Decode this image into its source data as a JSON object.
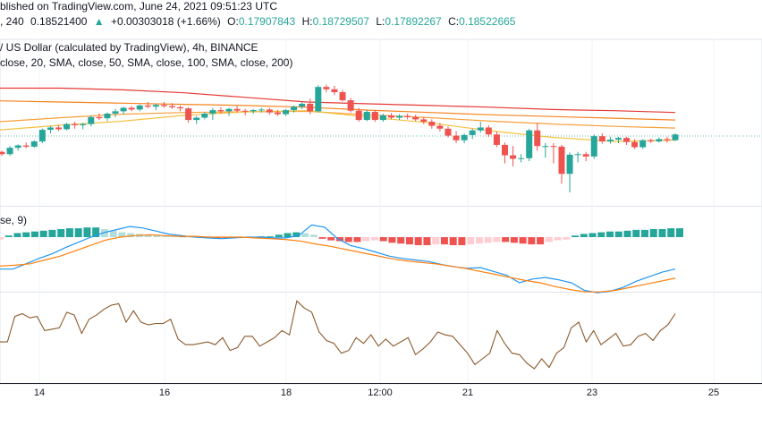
{
  "header": {
    "line1": "blished on TradingView.com, June 24, 2021 09:51:23 UTC",
    "interval": ", 240",
    "price": "0.18521400",
    "change_arrow": "▲",
    "change": "+0.00303018 (+1.66%)",
    "o_label": "O:",
    "o_value": "0.17907843",
    "h_label": "H:",
    "h_value": "0.18729507",
    "l_label": "L:",
    "l_value": "0.17892267",
    "c_label": "C:",
    "c_value": "0.18522665",
    "pair": "/ US Dollar (calculated by TradingView), 4h, BINANCE",
    "sma_line": "close, 20, SMA, close, 50, SMA, close, 100, SMA, close, 200)",
    "macd_label": "se, 9)"
  },
  "colors": {
    "up": "#26a69a",
    "down": "#ef5350",
    "sma20": "#f5c242",
    "sma50": "#f7a03a",
    "sma100": "#f7831f",
    "sma200": "#e53935",
    "macd": "#2196f3",
    "signal": "#ff7f0e",
    "rsi": "#8b5a2b"
  },
  "chart_data": {
    "type": "candlestick",
    "x_ticks": [
      "14",
      "16",
      "18",
      "12:00",
      "21",
      "23",
      "25"
    ],
    "candles": [
      [
        0.179,
        0.1792,
        0.1783,
        0.1786
      ],
      [
        0.1786,
        0.18,
        0.1783,
        0.1797
      ],
      [
        0.1797,
        0.1803,
        0.1792,
        0.1801
      ],
      [
        0.1801,
        0.1806,
        0.1796,
        0.1799
      ],
      [
        0.1799,
        0.181,
        0.1797,
        0.1808
      ],
      [
        0.1808,
        0.183,
        0.1805,
        0.1828
      ],
      [
        0.1828,
        0.1835,
        0.1822,
        0.1832
      ],
      [
        0.1832,
        0.1836,
        0.1826,
        0.1829
      ],
      [
        0.1829,
        0.184,
        0.1827,
        0.1838
      ],
      [
        0.1838,
        0.1842,
        0.183,
        0.1836
      ],
      [
        0.1836,
        0.184,
        0.1829,
        0.1838
      ],
      [
        0.1838,
        0.1852,
        0.1834,
        0.185
      ],
      [
        0.185,
        0.1856,
        0.1845,
        0.1848
      ],
      [
        0.1848,
        0.1858,
        0.1843,
        0.1856
      ],
      [
        0.1856,
        0.1864,
        0.185,
        0.186
      ],
      [
        0.186,
        0.1868,
        0.1855,
        0.1866
      ],
      [
        0.1866,
        0.1869,
        0.186,
        0.1863
      ],
      [
        0.1863,
        0.1872,
        0.186,
        0.187
      ],
      [
        0.187,
        0.1876,
        0.1865,
        0.1868
      ],
      [
        0.1868,
        0.1873,
        0.1862,
        0.1871
      ],
      [
        0.1871,
        0.1876,
        0.1866,
        0.1869
      ],
      [
        0.1869,
        0.1874,
        0.1864,
        0.1867
      ],
      [
        0.1867,
        0.187,
        0.186,
        0.1865
      ],
      [
        0.1865,
        0.1867,
        0.184,
        0.1845
      ],
      [
        0.1845,
        0.1852,
        0.1838,
        0.1849
      ],
      [
        0.1849,
        0.1858,
        0.1846,
        0.1856
      ],
      [
        0.1856,
        0.1866,
        0.1845,
        0.1862
      ],
      [
        0.1862,
        0.1867,
        0.1856,
        0.186
      ],
      [
        0.186,
        0.1866,
        0.1852,
        0.1864
      ],
      [
        0.1864,
        0.1869,
        0.1858,
        0.1861
      ],
      [
        0.1861,
        0.1864,
        0.1853,
        0.186
      ],
      [
        0.186,
        0.1864,
        0.1856,
        0.1862
      ],
      [
        0.1862,
        0.1866,
        0.1858,
        0.1863
      ],
      [
        0.1863,
        0.1866,
        0.1854,
        0.1858
      ],
      [
        0.1858,
        0.1862,
        0.1852,
        0.1855
      ],
      [
        0.1855,
        0.1864,
        0.1852,
        0.1862
      ],
      [
        0.1862,
        0.187,
        0.1858,
        0.1868
      ],
      [
        0.1868,
        0.1876,
        0.1864,
        0.1873
      ],
      [
        0.1873,
        0.1882,
        0.1855,
        0.186
      ],
      [
        0.186,
        0.1905,
        0.1858,
        0.1902
      ],
      [
        0.1902,
        0.1906,
        0.1893,
        0.1898
      ],
      [
        0.1898,
        0.1904,
        0.1888,
        0.1893
      ],
      [
        0.1893,
        0.1897,
        0.1877,
        0.1879
      ],
      [
        0.1879,
        0.1883,
        0.1858,
        0.1861
      ],
      [
        0.1861,
        0.1866,
        0.1842,
        0.1845
      ],
      [
        0.1845,
        0.1862,
        0.1843,
        0.1859
      ],
      [
        0.1859,
        0.1862,
        0.1842,
        0.1845
      ],
      [
        0.1845,
        0.1856,
        0.1842,
        0.1853
      ],
      [
        0.1853,
        0.1857,
        0.1846,
        0.1849
      ],
      [
        0.1849,
        0.1855,
        0.1845,
        0.1852
      ],
      [
        0.1852,
        0.1856,
        0.1846,
        0.185
      ],
      [
        0.185,
        0.1854,
        0.1843,
        0.1846
      ],
      [
        0.1846,
        0.185,
        0.1838,
        0.1842
      ],
      [
        0.1842,
        0.1846,
        0.183,
        0.1835
      ],
      [
        0.1835,
        0.184,
        0.1825,
        0.183
      ],
      [
        0.183,
        0.1834,
        0.1815,
        0.1818
      ],
      [
        0.1818,
        0.1826,
        0.1805,
        0.181
      ],
      [
        0.181,
        0.1822,
        0.1805,
        0.1819
      ],
      [
        0.1819,
        0.183,
        0.1812,
        0.1827
      ],
      [
        0.1827,
        0.1842,
        0.1823,
        0.1832
      ],
      [
        0.1832,
        0.1836,
        0.1816,
        0.182
      ],
      [
        0.182,
        0.1825,
        0.1798,
        0.1802
      ],
      [
        0.1802,
        0.1806,
        0.177,
        0.1784
      ],
      [
        0.1784,
        0.18,
        0.1765,
        0.1778
      ],
      [
        0.1778,
        0.1786,
        0.1772,
        0.1779
      ],
      [
        0.1779,
        0.183,
        0.1774,
        0.1827
      ],
      [
        0.1827,
        0.184,
        0.1792,
        0.18
      ],
      [
        0.18,
        0.1805,
        0.178,
        0.18
      ],
      [
        0.18,
        0.1805,
        0.177,
        0.1799
      ],
      [
        0.1799,
        0.1802,
        0.1735,
        0.1752
      ],
      [
        0.1752,
        0.1789,
        0.172,
        0.1785
      ],
      [
        0.1785,
        0.179,
        0.1772,
        0.1786
      ],
      [
        0.1786,
        0.179,
        0.1774,
        0.1782
      ],
      [
        0.1782,
        0.182,
        0.1778,
        0.1817
      ],
      [
        0.1817,
        0.1822,
        0.1804,
        0.1808
      ],
      [
        0.1808,
        0.1816,
        0.1804,
        0.1811
      ],
      [
        0.1811,
        0.1816,
        0.1805,
        0.1814
      ],
      [
        0.1814,
        0.1816,
        0.1802,
        0.1807
      ],
      [
        0.1807,
        0.1812,
        0.1795,
        0.1798
      ],
      [
        0.1798,
        0.1812,
        0.1795,
        0.181
      ],
      [
        0.181,
        0.1813,
        0.1805,
        0.1808
      ],
      [
        0.1808,
        0.1815,
        0.1806,
        0.1812
      ],
      [
        0.1812,
        0.1816,
        0.1806,
        0.181
      ],
      [
        0.181,
        0.1822,
        0.1809,
        0.182
      ]
    ],
    "sma200": [
      0.19,
      0.19,
      0.1897,
      0.1892,
      0.1884,
      0.1876,
      0.1873,
      0.187,
      0.1867,
      0.1863,
      0.1861,
      0.1858
    ],
    "sma100": [
      0.1878,
      0.1876,
      0.1874,
      0.1872,
      0.187,
      0.1867,
      0.1862,
      0.1858,
      0.1854,
      0.1851,
      0.1848,
      0.1845
    ],
    "sma50": [
      0.1842,
      0.1849,
      0.1855,
      0.1858,
      0.1859,
      0.186,
      0.1854,
      0.1849,
      0.1843,
      0.1838,
      0.1834,
      0.1831
    ],
    "sma20": [
      0.1828,
      0.1836,
      0.1843,
      0.1853,
      0.1859,
      0.1861,
      0.185,
      0.184,
      0.1826,
      0.1815,
      0.1808,
      0.181
    ],
    "macd_hist": [
      -0.3,
      0.2,
      0.5,
      0.6,
      0.7,
      0.8,
      0.9,
      1.0,
      1.1,
      1.1,
      1.2,
      1.2,
      1.0,
      0.8,
      0.6,
      0.5,
      0.4,
      0.3,
      0.2,
      0.15,
      0.1,
      0.1,
      0.1,
      0.05,
      0.0,
      -0.05,
      -0.05,
      -0.1,
      -0.1,
      0.05,
      0.1,
      0.1,
      0.3,
      0.5,
      0.6,
      0.5,
      0.3,
      -0.2,
      -0.4,
      -0.5,
      -0.6,
      -0.6,
      -0.5,
      -0.4,
      -0.5,
      -0.7,
      -0.8,
      -0.9,
      -1.0,
      -1.0,
      -0.9,
      -0.9,
      -1.0,
      -1.0,
      -0.9,
      -0.8,
      -0.7,
      -0.6,
      -0.6,
      -0.7,
      -0.8,
      -0.9,
      -0.9,
      -0.6,
      -0.4,
      -0.3,
      0.2,
      0.4,
      0.5,
      0.6,
      0.7,
      0.7,
      0.8,
      0.9,
      0.9,
      1.0,
      1.0,
      1.1,
      1.1
    ],
    "macd_line": [
      -2.2,
      -2.2,
      -1.5,
      -0.8,
      -0.2,
      0.6,
      1.3,
      2.0,
      2.6,
      3.0,
      3.4,
      3.2,
      2.8,
      2.4,
      2.2,
      2.0,
      1.9,
      1.8,
      1.9,
      2.0,
      2.0,
      1.9,
      1.9,
      2.2,
      3.6,
      3.3,
      1.8,
      0.9,
      0.5,
      0.0,
      -0.5,
      -0.8,
      -1.0,
      -1.2,
      -1.6,
      -1.9,
      -2.1,
      -2.0,
      -2.5,
      -3.0,
      -4.0,
      -3.5,
      -3.3,
      -3.6,
      -4.0,
      -5.0,
      -5.3,
      -5.1,
      -4.6,
      -3.8,
      -3.2,
      -2.6,
      -2.2
    ],
    "signal_line": [
      -1.8,
      -1.7,
      -1.5,
      -1.0,
      -0.5,
      0.2,
      0.9,
      1.6,
      2.0,
      2.2,
      2.3,
      2.2,
      2.1,
      2.1,
      2.0,
      2.0,
      2.0,
      1.9,
      1.8,
      1.7,
      1.5,
      1.1,
      0.8,
      0.4,
      0.0,
      -0.4,
      -0.8,
      -1.1,
      -1.3,
      -1.5,
      -1.8,
      -2.1,
      -2.5,
      -2.9,
      -3.3,
      -3.7,
      -4.0,
      -4.5,
      -4.9,
      -5.2,
      -5.2,
      -5.0,
      -4.6,
      -4.2,
      -3.8,
      -3.4
    ],
    "rsi": [
      44,
      44,
      62,
      64,
      61,
      62,
      52,
      53,
      54,
      65,
      63,
      50,
      60,
      63,
      67,
      70,
      71,
      58,
      66,
      58,
      56,
      57,
      57,
      60,
      46,
      42,
      42,
      43,
      44,
      42,
      47,
      38,
      40,
      48,
      48,
      41,
      44,
      47,
      52,
      49,
      73,
      68,
      65,
      51,
      45,
      43,
      36,
      38,
      47,
      43,
      49,
      41,
      46,
      41,
      44,
      47,
      35,
      39,
      44,
      51,
      49,
      48,
      42,
      36,
      28,
      32,
      36,
      52,
      43,
      36,
      35,
      29,
      25,
      32,
      26,
      36,
      40,
      54,
      58,
      44,
      52,
      42,
      46,
      50,
      41,
      42,
      48,
      50,
      45,
      52,
      56,
      64
    ]
  }
}
